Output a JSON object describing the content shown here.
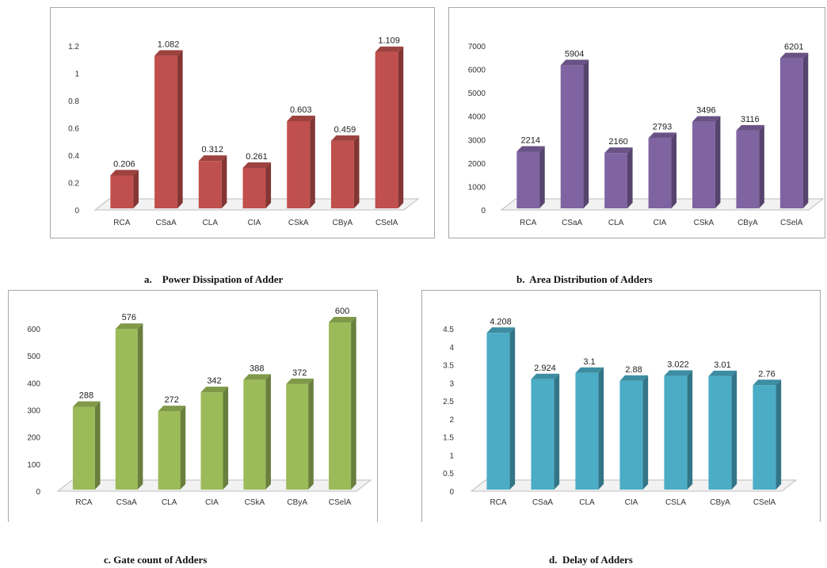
{
  "chart_data": [
    {
      "type": "bar",
      "caption": "a.    Power Dissipation of Adder",
      "categories": [
        "RCA",
        "CSaA",
        "CLA",
        "CIA",
        "CSkA",
        "CByA",
        "CSelA"
      ],
      "values": [
        0.206,
        1.082,
        0.312,
        0.261,
        0.603,
        0.459,
        1.109
      ],
      "data_labels": [
        "0.206",
        "1.082",
        "0.312",
        "0.261",
        "0.603",
        "0.459",
        "1.109"
      ],
      "yticks": [
        "0",
        "0.2",
        "0.4",
        "0.6",
        "0.8",
        "1",
        "1.2"
      ],
      "ylim": [
        0,
        1.2
      ],
      "grid": false,
      "color": "#c0504d"
    },
    {
      "type": "bar",
      "caption": "b.  Area Distribution of Adders",
      "categories": [
        "RCA",
        "CSaA",
        "CLA",
        "CIA",
        "CSkA",
        "CByA",
        "CSelA"
      ],
      "values": [
        2214,
        5904,
        2160,
        2793,
        3496,
        3116,
        6201
      ],
      "data_labels": [
        "2214",
        "5904",
        "2160",
        "2793",
        "3496",
        "3116",
        "6201"
      ],
      "yticks": [
        "0",
        "1000",
        "2000",
        "3000",
        "4000",
        "5000",
        "6000",
        "7000"
      ],
      "ylim": [
        0,
        7000
      ],
      "grid": false,
      "color": "#8064a2"
    },
    {
      "type": "bar",
      "caption": "c. Gate count of Adders",
      "categories": [
        "RCA",
        "CSaA",
        "CLA",
        "CIA",
        "CSkA",
        "CByA",
        "CSelA"
      ],
      "values": [
        288,
        576,
        272,
        342,
        388,
        372,
        600
      ],
      "data_labels": [
        "288",
        "576",
        "272",
        "342",
        "388",
        "372",
        "600"
      ],
      "yticks": [
        "0",
        "100",
        "200",
        "300",
        "400",
        "500",
        "600"
      ],
      "ylim": [
        0,
        600
      ],
      "grid": false,
      "color": "#9bbb59"
    },
    {
      "type": "bar",
      "caption": "d.  Delay of Adders",
      "categories": [
        "RCA",
        "CSaA",
        "CLA",
        "CIA",
        "CSLA",
        "CByA",
        "CSelA"
      ],
      "values": [
        4.208,
        2.924,
        3.1,
        2.88,
        3.022,
        3.01,
        2.76
      ],
      "data_labels": [
        "4.208",
        "2.924",
        "3.1",
        "2.88",
        "3.022",
        "3.01",
        "2.76"
      ],
      "yticks": [
        "0",
        "0.5",
        "1",
        "1.5",
        "2",
        "2.5",
        "3",
        "3.5",
        "4",
        "4.5"
      ],
      "ylim": [
        0,
        4.5
      ],
      "grid": false,
      "color": "#4bacc6"
    }
  ]
}
